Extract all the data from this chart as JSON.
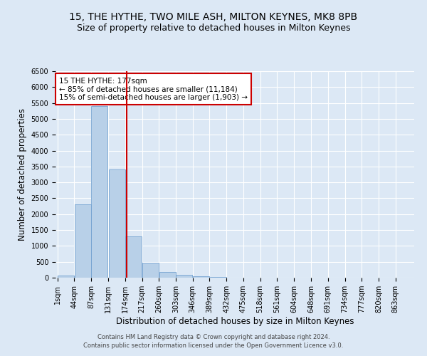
{
  "title1": "15, THE HYTHE, TWO MILE ASH, MILTON KEYNES, MK8 8PB",
  "title2": "Size of property relative to detached houses in Milton Keynes",
  "xlabel": "Distribution of detached houses by size in Milton Keynes",
  "ylabel": "Number of detached properties",
  "footnote1": "Contains HM Land Registry data © Crown copyright and database right 2024.",
  "footnote2": "Contains public sector information licensed under the Open Government Licence v3.0.",
  "bar_edges": [
    1,
    44,
    87,
    131,
    174,
    217,
    260,
    303,
    346,
    389,
    432,
    475,
    518,
    561,
    604,
    648,
    691,
    734,
    777,
    820,
    863
  ],
  "bar_heights": [
    70,
    2300,
    5400,
    3400,
    1300,
    480,
    180,
    80,
    50,
    30,
    10,
    5,
    5,
    2,
    2,
    1,
    1,
    1,
    1,
    1
  ],
  "bar_color": "#b8d0e8",
  "bar_edgecolor": "#6699cc",
  "property_size": 177,
  "vline_color": "#cc0000",
  "annotation_text": "15 THE HYTHE: 177sqm\n← 85% of detached houses are smaller (11,184)\n15% of semi-detached houses are larger (1,903) →",
  "annotation_box_color": "white",
  "annotation_box_edgecolor": "#cc0000",
  "ylim": [
    0,
    6500
  ],
  "yticks": [
    0,
    500,
    1000,
    1500,
    2000,
    2500,
    3000,
    3500,
    4000,
    4500,
    5000,
    5500,
    6000,
    6500
  ],
  "bg_color": "#dce8f5",
  "plot_bg_color": "#dce8f5",
  "title1_fontsize": 10,
  "title2_fontsize": 9,
  "tick_label_fontsize": 7,
  "ylabel_fontsize": 8.5,
  "xlabel_fontsize": 8.5,
  "annotation_fontsize": 7.5,
  "footnote_fontsize": 6
}
